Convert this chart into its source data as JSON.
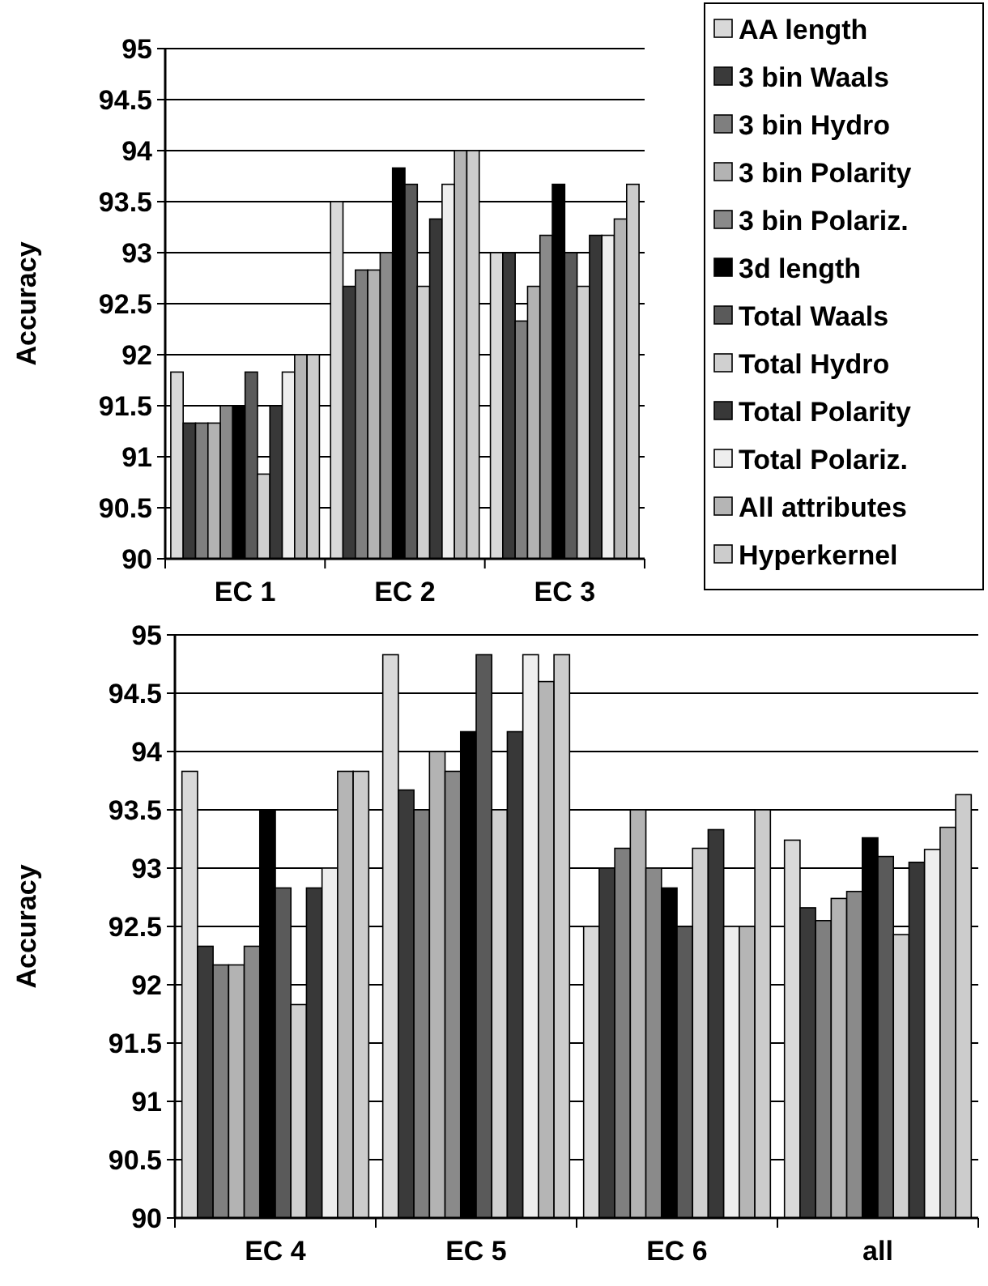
{
  "chart_data": [
    {
      "type": "bar",
      "ylabel": "Accuracy",
      "categories": [
        "EC 1",
        "EC 2",
        "EC 3"
      ],
      "ylim": [
        90,
        95
      ],
      "yticks": [
        90,
        90.5,
        91,
        91.5,
        92,
        92.5,
        93,
        93.5,
        94,
        94.5,
        95
      ],
      "grid": "y",
      "legend": "right",
      "series": [
        {
          "name": "AA length",
          "color": "#d9d9d9",
          "values": [
            91.83,
            93.5,
            93
          ]
        },
        {
          "name": "3 bin Waals",
          "color": "#3a3a3a",
          "values": [
            91.33,
            92.67,
            93
          ]
        },
        {
          "name": "3 bin Hydro",
          "color": "#7f7f7f",
          "values": [
            91.33,
            92.83,
            92.33
          ]
        },
        {
          "name": "3 bin Polarity",
          "color": "#b3b3b3",
          "values": [
            91.33,
            92.83,
            92.67
          ]
        },
        {
          "name": "3 bin Polariz.",
          "color": "#8a8a8a",
          "values": [
            91.5,
            93,
            93.17
          ]
        },
        {
          "name": "3d length",
          "color": "#000000",
          "values": [
            91.5,
            93.83,
            93.67
          ]
        },
        {
          "name": "Total Waals",
          "color": "#5a5a5a",
          "values": [
            91.83,
            93.67,
            93
          ]
        },
        {
          "name": "Total Hydro",
          "color": "#d0d0d0",
          "values": [
            90.83,
            92.67,
            92.67
          ]
        },
        {
          "name": "Total Polarity",
          "color": "#383838",
          "values": [
            91.5,
            93.33,
            93.17
          ]
        },
        {
          "name": "Total Polariz.",
          "color": "#eeeeee",
          "values": [
            91.83,
            93.67,
            93.17
          ]
        },
        {
          "name": "All attributes",
          "color": "#b5b5b5",
          "values": [
            92,
            94,
            93.33
          ]
        },
        {
          "name": "Hyperkernel",
          "color": "#cccccc",
          "values": [
            92,
            94,
            93.67
          ]
        }
      ]
    },
    {
      "type": "bar",
      "ylabel": "Accuracy",
      "categories": [
        "EC 4",
        "EC 5",
        "EC 6",
        "all"
      ],
      "ylim": [
        90,
        95
      ],
      "yticks": [
        90,
        90.5,
        91,
        91.5,
        92,
        92.5,
        93,
        93.5,
        94,
        94.5,
        95
      ],
      "grid": "y",
      "series": [
        {
          "color": "#d9d9d9",
          "values": [
            93.83,
            94.83,
            92.5,
            93.24
          ]
        },
        {
          "color": "#3a3a3a",
          "values": [
            92.33,
            93.67,
            93,
            92.66
          ]
        },
        {
          "color": "#7f7f7f",
          "values": [
            92.17,
            93.5,
            93.17,
            92.55
          ]
        },
        {
          "color": "#b3b3b3",
          "values": [
            92.17,
            94,
            93.5,
            92.74
          ]
        },
        {
          "color": "#8a8a8a",
          "values": [
            92.33,
            93.83,
            93,
            92.8
          ]
        },
        {
          "color": "#000000",
          "values": [
            93.5,
            94.17,
            92.83,
            93.26
          ]
        },
        {
          "color": "#5a5a5a",
          "values": [
            92.83,
            94.83,
            92.5,
            93.1
          ]
        },
        {
          "color": "#d0d0d0",
          "values": [
            91.83,
            93.5,
            93.17,
            92.43
          ]
        },
        {
          "color": "#383838",
          "values": [
            92.83,
            94.17,
            93.33,
            93.05
          ]
        },
        {
          "color": "#eeeeee",
          "values": [
            93,
            94.83,
            92.5,
            93.16
          ]
        },
        {
          "color": "#b5b5b5",
          "values": [
            93.83,
            94.6,
            92.5,
            93.35
          ]
        },
        {
          "color": "#cccccc",
          "values": [
            93.83,
            94.83,
            93.5,
            93.63
          ]
        }
      ]
    }
  ]
}
